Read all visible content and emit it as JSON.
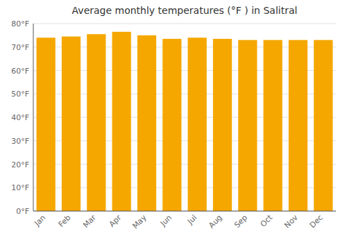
{
  "chart_data": {
    "type": "bar",
    "title": "Average monthly temperatures (°F ) in Salitral",
    "categories": [
      "Jan",
      "Feb",
      "Mar",
      "Apr",
      "May",
      "Jun",
      "Jul",
      "Aug",
      "Sep",
      "Oct",
      "Nov",
      "Dec"
    ],
    "values": [
      74,
      74.5,
      75.5,
      76.5,
      75,
      73.5,
      74,
      73.5,
      73,
      73,
      73,
      73
    ],
    "color": "#F5A700",
    "ylim": [
      0,
      80
    ],
    "yticks": [
      {
        "value": 0,
        "label": "0°F"
      },
      {
        "value": 10,
        "label": "10°F"
      },
      {
        "value": 20,
        "label": "20°F"
      },
      {
        "value": 30,
        "label": "30°F"
      },
      {
        "value": 40,
        "label": "40°F"
      },
      {
        "value": 50,
        "label": "50°F"
      },
      {
        "value": 60,
        "label": "60°F"
      },
      {
        "value": 70,
        "label": "70°F"
      },
      {
        "value": 80,
        "label": "80°F"
      }
    ],
    "grid": true
  }
}
